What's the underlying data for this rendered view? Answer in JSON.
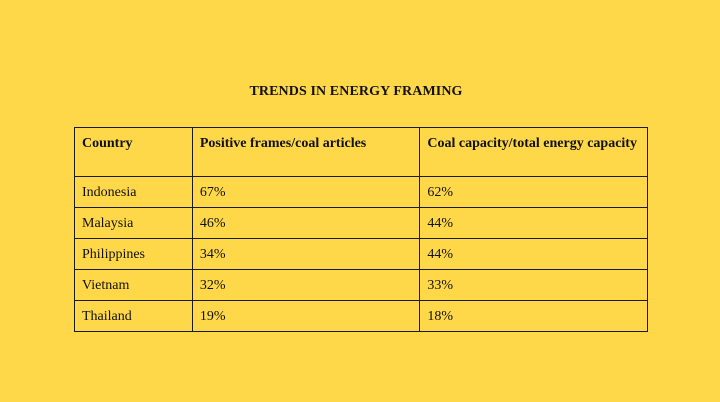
{
  "chart_data": {
    "type": "table",
    "title": "TRENDS IN ENERGY FRAMING",
    "columns": [
      "Country",
      "Positive frames/coal articles",
      "Coal capacity/total energy capacity"
    ],
    "rows": [
      [
        "Indonesia",
        "67%",
        "62%"
      ],
      [
        "Malaysia",
        "46%",
        "44%"
      ],
      [
        "Philippines",
        "34%",
        "44%"
      ],
      [
        "Vietnam",
        "32%",
        "33%"
      ],
      [
        "Thailand",
        "19%",
        "18%"
      ]
    ]
  },
  "colors": {
    "background": "#ffd84a",
    "border": "#1a1a1a",
    "text": "#111111"
  }
}
